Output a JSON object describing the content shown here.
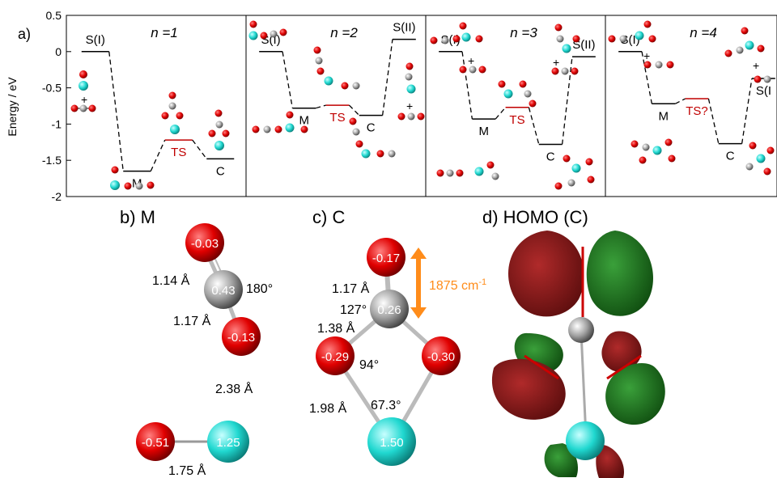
{
  "panel_a": {
    "label": "a)",
    "ylabel": "Energy / eV",
    "yticks": [
      "0.5",
      "0",
      "-0.5",
      "-1",
      "-1.5",
      "-2"
    ],
    "ylim": [
      -2,
      0.5
    ],
    "colors": {
      "dashed": "#000000",
      "ts_label": "#c00000",
      "o_atom": "#d40000",
      "c_atom": "#8a8a8a",
      "sc_atom": "#22d0c8"
    },
    "subpanels": [
      {
        "title": "n =1",
        "levels": [
          {
            "label": "S(I)",
            "energy": 0.0,
            "color": "#000000"
          },
          {
            "label": "M",
            "energy": -1.65,
            "color": "#000000"
          },
          {
            "label": "TS",
            "energy": -1.22,
            "color": "#c00000"
          },
          {
            "label": "C",
            "energy": -1.48,
            "color": "#000000"
          }
        ]
      },
      {
        "title": "n =2",
        "levels": [
          {
            "label": "S(I)",
            "energy": 0.0,
            "color": "#000000"
          },
          {
            "label": "M",
            "energy": -0.78,
            "color": "#000000"
          },
          {
            "label": "TS",
            "energy": -0.74,
            "color": "#c00000"
          },
          {
            "label": "C",
            "energy": -0.88,
            "color": "#000000"
          },
          {
            "label": "S(II)",
            "energy": 0.17,
            "color": "#000000"
          }
        ]
      },
      {
        "title": "n =3",
        "levels": [
          {
            "label": "S(I)",
            "energy": 0.0,
            "color": "#000000"
          },
          {
            "label": "M",
            "energy": -0.93,
            "color": "#000000"
          },
          {
            "label": "TS",
            "energy": -0.77,
            "color": "#c00000"
          },
          {
            "label": "C",
            "energy": -1.28,
            "color": "#000000"
          },
          {
            "label": "S(II)",
            "energy": -0.07,
            "color": "#000000"
          }
        ]
      },
      {
        "title": "n =4",
        "levels": [
          {
            "label": "S(I)",
            "energy": 0.0,
            "color": "#000000"
          },
          {
            "label": "M",
            "energy": -0.72,
            "color": "#000000"
          },
          {
            "label": "TS?",
            "energy": -0.65,
            "color": "#c00000"
          },
          {
            "label": "C",
            "energy": -1.27,
            "color": "#000000"
          },
          {
            "label": "S(I",
            "energy": -0.37,
            "color": "#000000"
          }
        ]
      }
    ]
  },
  "panel_b": {
    "label": "b) M",
    "charges": {
      "o_top": "-0.03",
      "c": "0.43",
      "o_bottom": "-0.13",
      "o_lower": "-0.51",
      "sc": "1.25"
    },
    "bonds": {
      "co_top": "1.14 Å",
      "co_bottom": "1.17 Å",
      "o_o_gap": "2.38 Å",
      "sco": "1.75 Å"
    },
    "angle": "180°"
  },
  "panel_c": {
    "label": "c) C",
    "charges": {
      "o_top": "-0.17",
      "c": "0.26",
      "o_left": "-0.29",
      "o_right": "-0.30",
      "sc": "1.50"
    },
    "bonds": {
      "co_top": "1.17 Å",
      "co_left": "1.38 Å",
      "sco_left": "1.98 Å"
    },
    "angles": {
      "oco": "127°",
      "coo": "94°",
      "osc": "67.3°"
    },
    "frequency": "1875 cm",
    "frequency_sup": "-1",
    "frequency_color": "#ff8c1a"
  },
  "panel_d": {
    "label": "d) HOMO (C)",
    "colors": {
      "lobe_red": "#8b1a1a",
      "lobe_green": "#1f7a1f"
    }
  }
}
